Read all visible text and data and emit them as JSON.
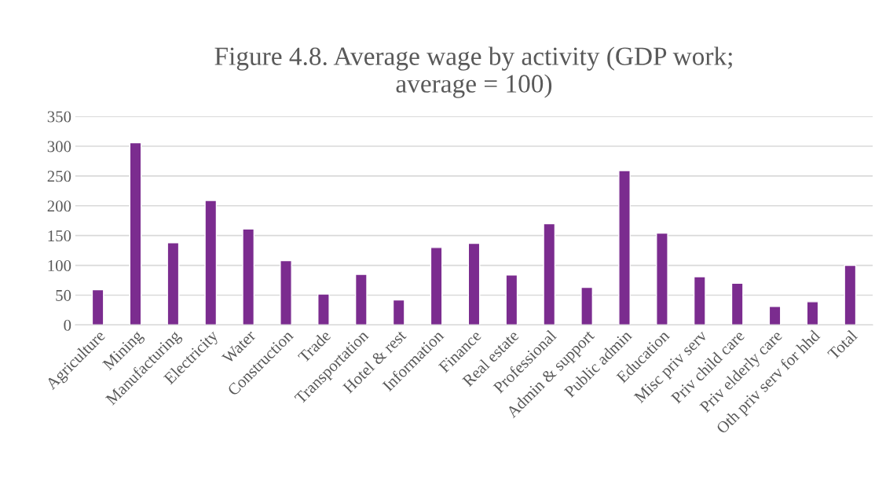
{
  "chart_data": {
    "type": "bar",
    "title": "Figure 4.8. Average wage by activity (GDP work;\naverage = 100)",
    "categories": [
      "Agriculture",
      "Mining",
      "Manufacturing",
      "Electricity",
      "Water",
      "Construction",
      "Trade",
      "Transportation",
      "Hotel & rest",
      "Information",
      "Finance",
      "Real estate",
      "Professional",
      "Admin & support",
      "Public admin",
      "Education",
      "Misc priv serv",
      "Priv child care",
      "Priv elderly care",
      "Oth priv serv for hhd",
      "Total"
    ],
    "values": [
      59,
      306,
      138,
      209,
      161,
      108,
      52,
      85,
      42,
      130,
      137,
      84,
      170,
      63,
      259,
      154,
      81,
      70,
      31,
      39,
      100
    ],
    "color": "#7b2c8f",
    "ylim": [
      0,
      350
    ],
    "yticks": [
      0,
      50,
      100,
      150,
      200,
      250,
      300,
      350
    ],
    "grid": "y"
  }
}
